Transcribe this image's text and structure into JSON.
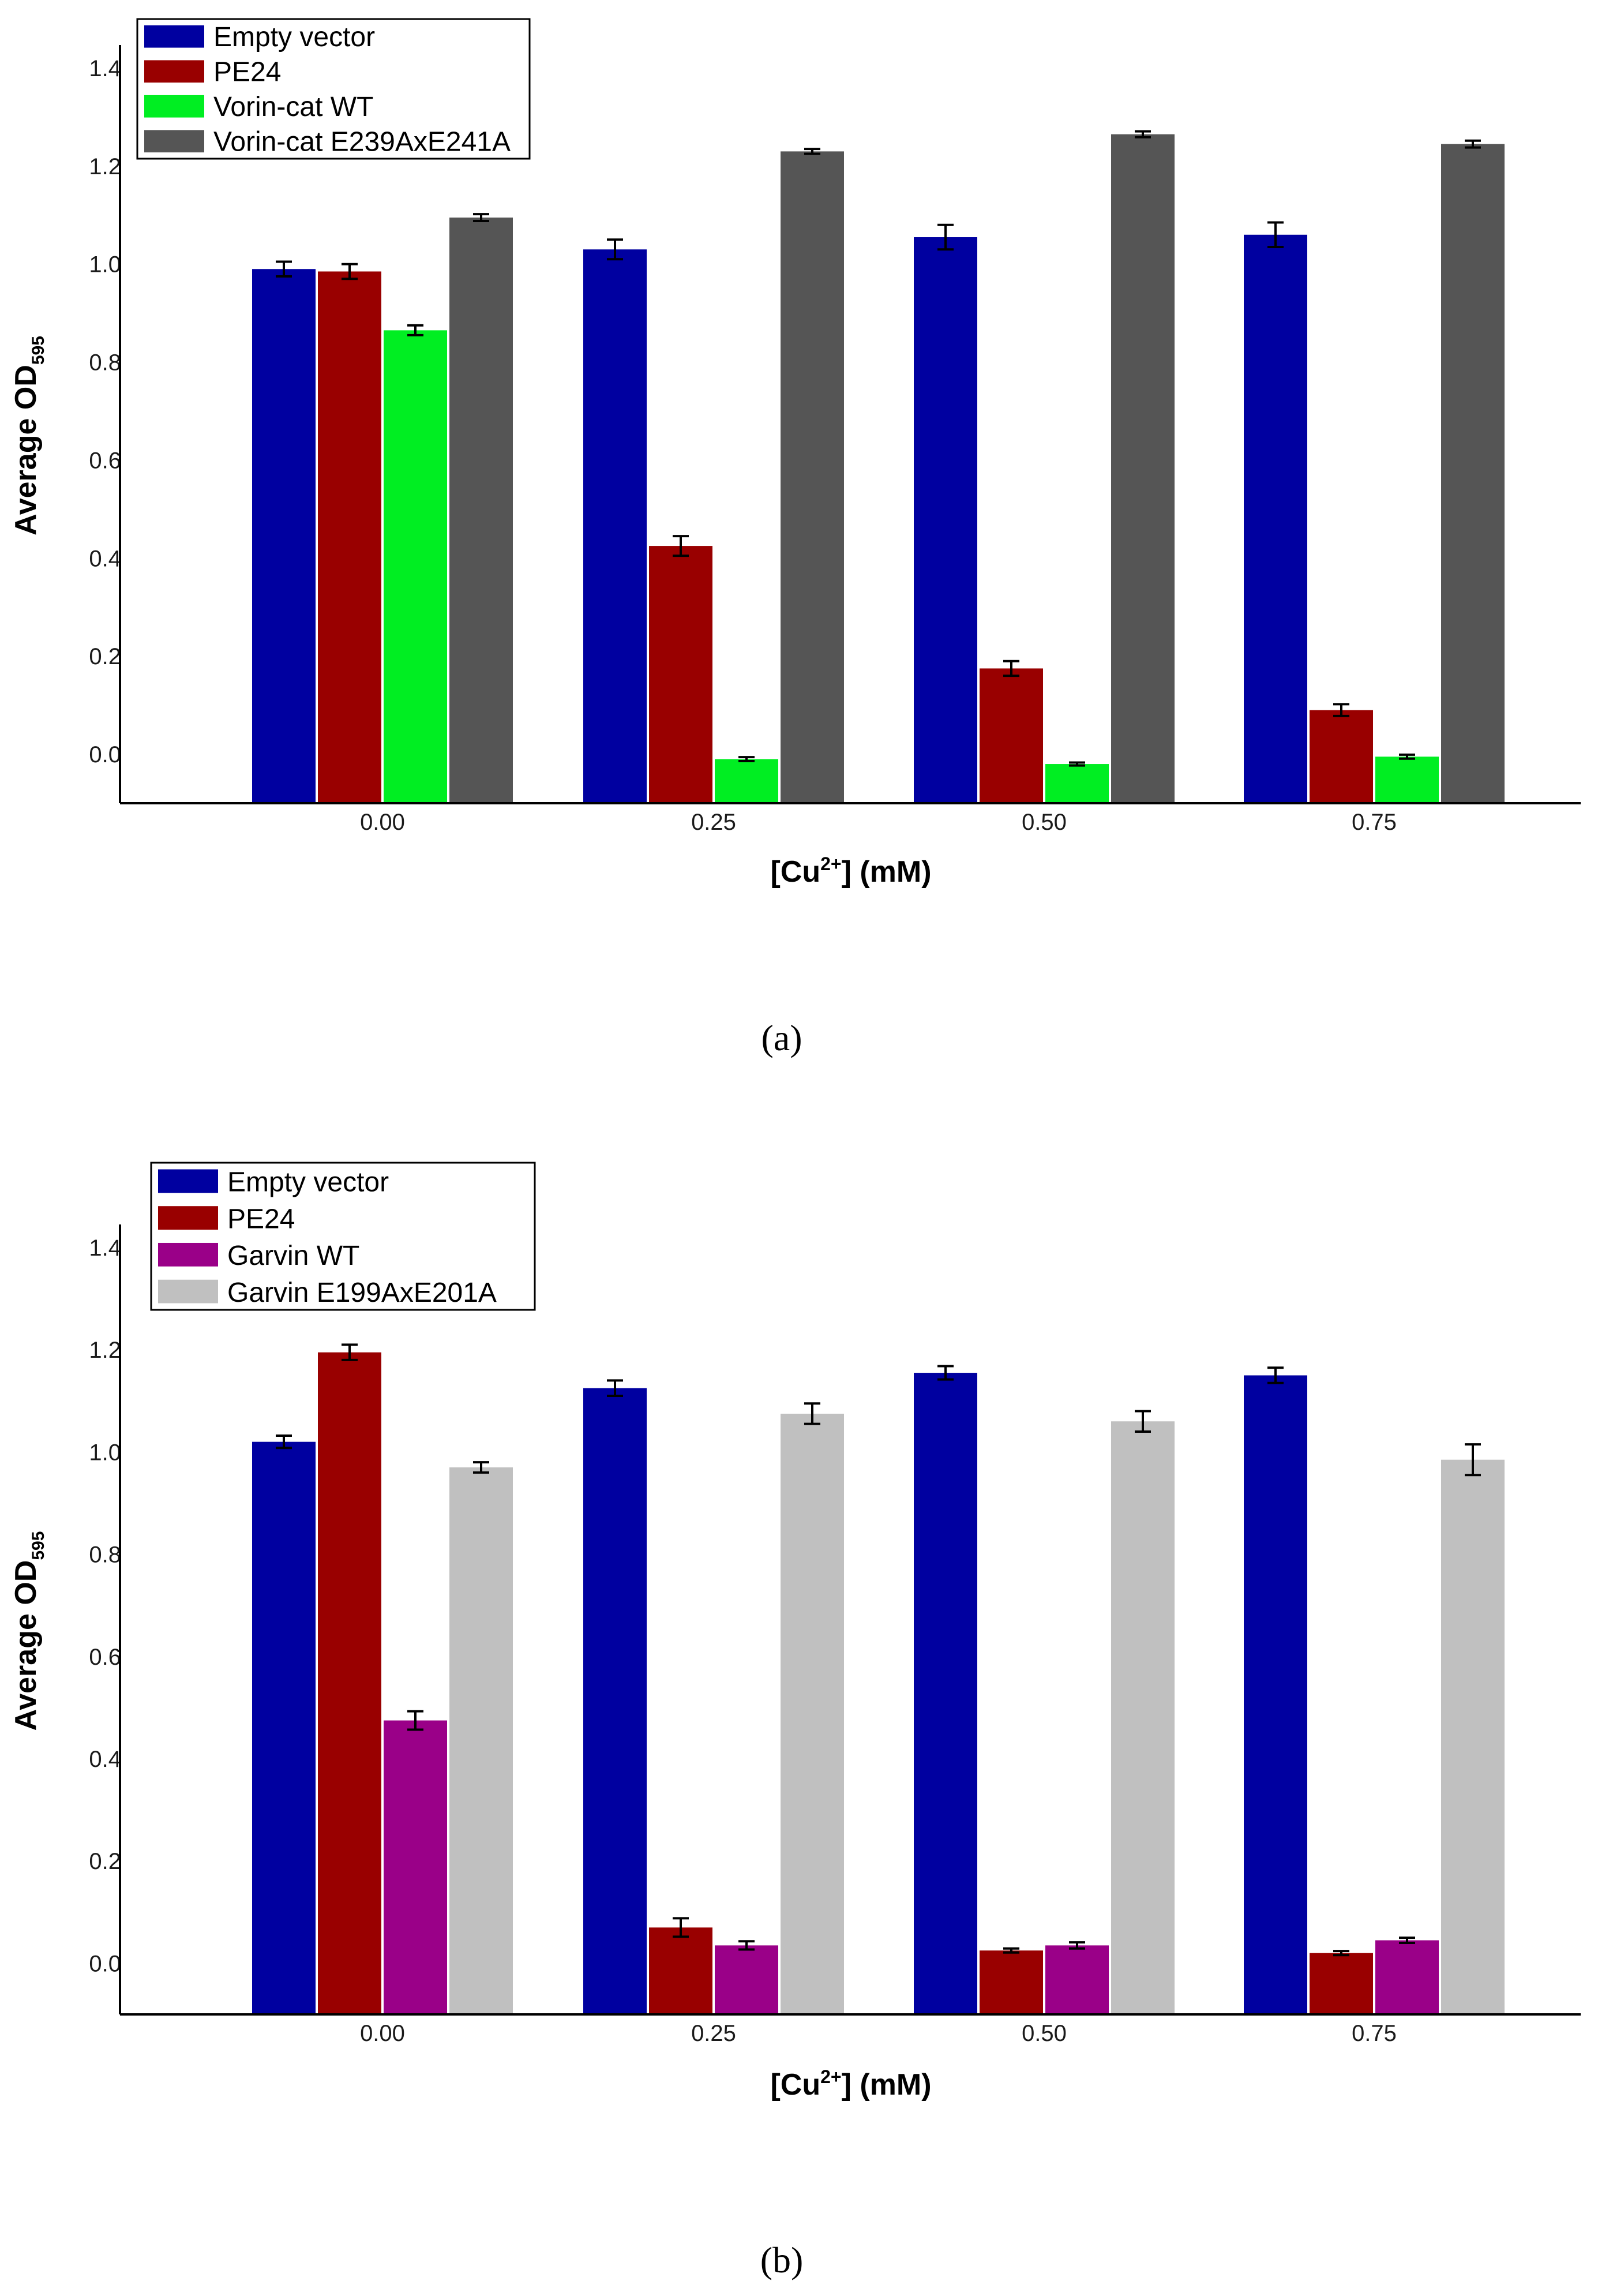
{
  "chart_data": [
    {
      "type": "bar",
      "panel_label": "(a)",
      "categories": [
        "0.00",
        "0.25",
        "0.50",
        "0.75"
      ],
      "series": [
        {
          "name": "Empty vector",
          "color": "#0000a0",
          "values": [
            0.99,
            1.03,
            1.055,
            1.06
          ],
          "errors": [
            0.015,
            0.02,
            0.025,
            0.025
          ]
        },
        {
          "name": "PE24",
          "color": "#990000",
          "values": [
            0.985,
            0.425,
            0.175,
            0.09
          ],
          "errors": [
            0.015,
            0.02,
            0.015,
            0.012
          ]
        },
        {
          "name": "Vorin-cat WT",
          "color": "#00ee22",
          "values": [
            0.865,
            -0.01,
            -0.02,
            -0.005
          ],
          "errors": [
            0.01,
            0.004,
            0.003,
            0.004
          ]
        },
        {
          "name": "Vorin-cat E239AxE241A",
          "color": "#555555",
          "values": [
            1.095,
            1.23,
            1.265,
            1.245
          ],
          "errors": [
            0.007,
            0.005,
            0.006,
            0.007
          ]
        }
      ],
      "ylim": [
        -0.1,
        1.4
      ],
      "yticks": [
        "0.0",
        "0.2",
        "0.4",
        "0.6",
        "0.8",
        "1.0",
        "1.2",
        "1.4"
      ],
      "ylabel": {
        "main": "Average OD",
        "sub": "595"
      },
      "xlabel": {
        "pre": "[Cu",
        "sup": "2+",
        "post": "] (mM)"
      },
      "legend_position": "top-left"
    },
    {
      "type": "bar",
      "panel_label": "(b)",
      "categories": [
        "0.00",
        "0.25",
        "0.50",
        "0.75"
      ],
      "series": [
        {
          "name": "Empty vector",
          "color": "#0000a0",
          "values": [
            1.02,
            1.125,
            1.155,
            1.15
          ],
          "errors": [
            0.012,
            0.015,
            0.013,
            0.015
          ]
        },
        {
          "name": "PE24",
          "color": "#990000",
          "values": [
            1.195,
            0.07,
            0.025,
            0.02
          ],
          "errors": [
            0.015,
            0.018,
            0.004,
            0.004
          ]
        },
        {
          "name": "Garvin WT",
          "color": "#9a0088",
          "values": [
            0.475,
            0.035,
            0.035,
            0.045
          ],
          "errors": [
            0.018,
            0.008,
            0.006,
            0.005
          ]
        },
        {
          "name": "Garvin E199AxE201A",
          "color": "#c0c0c0",
          "values": [
            0.97,
            1.075,
            1.06,
            0.985
          ],
          "errors": [
            0.01,
            0.02,
            0.02,
            0.03
          ]
        }
      ],
      "ylim": [
        -0.1,
        1.4
      ],
      "yticks": [
        "0.0",
        "0.2",
        "0.4",
        "0.6",
        "0.8",
        "1.0",
        "1.2",
        "1.4"
      ],
      "ylabel": {
        "main": "Average OD",
        "sub": "595"
      },
      "xlabel": {
        "pre": "[Cu",
        "sup": "2+",
        "post": "] (mM)"
      },
      "legend_position": "top-left"
    }
  ]
}
